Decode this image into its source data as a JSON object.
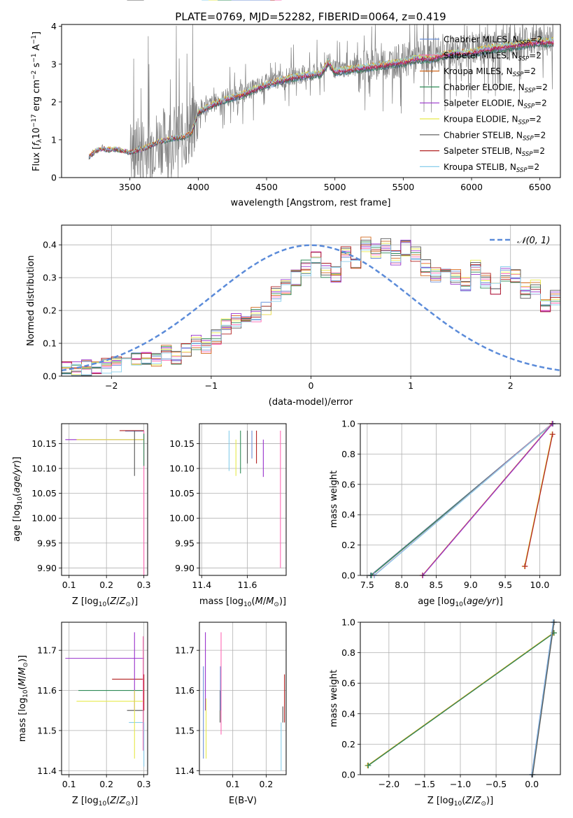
{
  "figure": {
    "title": "PLATE=0769, MJD=52282, FIBERID=0064, z=0.419"
  },
  "colors": {
    "chabrier_miles": "#6b8fd6",
    "salpeter_miles": "#ff69b4",
    "kroupa_miles": "#d2691e",
    "chabrier_elodie": "#2e8b57",
    "salpeter_elodie": "#9932cc",
    "kroupa_elodie": "#e6e94a",
    "chabrier_stelib": "#555555",
    "salpeter_stelib": "#b22222",
    "kroupa_stelib": "#87ceeb",
    "data": "#808080",
    "normal": "#5b8bd9"
  },
  "chart_data": [
    {
      "id": "spectrum",
      "type": "line",
      "title": "PLATE=0769, MJD=52282, FIBERID=0064, z=0.419",
      "xlabel": "wavelength [Angstrom, rest frame]",
      "ylabel": "Flux [f_λ 10^-17 erg cm^-2 s^-1 A^-1]",
      "xlim": [
        3000,
        6650
      ],
      "ylim": [
        0,
        4.05
      ],
      "xticks": [
        3500,
        4000,
        4500,
        5000,
        5500,
        6000,
        6500
      ],
      "yticks": [
        0,
        1,
        2,
        3,
        4
      ],
      "legend_position": "top-right",
      "series": [
        {
          "name": "Chabrier MILES, N_SSP=2"
        },
        {
          "name": "Salpeter MILES, N_SSP=2"
        },
        {
          "name": "Kroupa MILES, N_SSP=2"
        },
        {
          "name": "Chabrier ELODIE, N_SSP=2"
        },
        {
          "name": "Salpeter ELODIE, N_SSP=2"
        },
        {
          "name": "Kroupa ELODIE, N_SSP=2"
        },
        {
          "name": "Chabrier STELIB, N_SSP=2"
        },
        {
          "name": "Salpeter STELIB, N_SSP=2"
        },
        {
          "name": "Kroupa STELIB, N_SSP=2"
        }
      ],
      "model_continuum": {
        "x": [
          3200,
          3250,
          3300,
          3350,
          3400,
          3450,
          3500,
          3600,
          3700,
          3800,
          3900,
          3950,
          4000,
          4100,
          4200,
          4300,
          4400,
          4500,
          4600,
          4700,
          4800,
          4900,
          4950,
          5000,
          5100,
          5200,
          5300,
          5400,
          5500,
          5600,
          5700,
          5800,
          5900,
          6000,
          6100,
          6200,
          6300,
          6400,
          6500,
          6600
        ],
        "y": [
          0.55,
          0.72,
          0.78,
          0.75,
          0.76,
          0.72,
          0.68,
          0.78,
          0.95,
          1.05,
          1.1,
          1.2,
          1.75,
          1.95,
          2.1,
          2.2,
          2.35,
          2.5,
          2.6,
          2.7,
          2.75,
          2.8,
          3.1,
          2.85,
          2.9,
          2.95,
          3.0,
          3.05,
          3.1,
          3.2,
          3.2,
          3.3,
          3.35,
          3.35,
          3.45,
          3.5,
          3.55,
          3.6,
          3.65,
          3.65
        ]
      }
    },
    {
      "id": "residuals",
      "type": "line",
      "xlabel": "(data-model)/error",
      "ylabel": "Normed distribution",
      "xlim": [
        -2.5,
        2.5
      ],
      "ylim": [
        0,
        0.46
      ],
      "xticks": [
        -2,
        -1,
        0,
        1,
        2
      ],
      "yticks": [
        0.0,
        0.1,
        0.2,
        0.3,
        0.4
      ],
      "legend_position": "top-right",
      "legend": "𝒩(0, 1)",
      "histogram_base": {
        "bin_width": 0.1,
        "x_start": -2.5,
        "values": [
          0.02,
          0.02,
          0.025,
          0.03,
          0.03,
          0.035,
          0.04,
          0.05,
          0.06,
          0.05,
          0.07,
          0.06,
          0.08,
          0.1,
          0.09,
          0.12,
          0.15,
          0.17,
          0.16,
          0.19,
          0.21,
          0.25,
          0.27,
          0.3,
          0.33,
          0.36,
          0.32,
          0.31,
          0.37,
          0.34,
          0.4,
          0.38,
          0.4,
          0.36,
          0.39,
          0.37,
          0.33,
          0.31,
          0.32,
          0.3,
          0.28,
          0.33,
          0.29,
          0.27,
          0.31,
          0.3,
          0.26,
          0.27,
          0.22,
          0.24
        ]
      }
    },
    {
      "id": "age-vs-z",
      "type": "scatter",
      "xlabel": "Z [log10(Z/Z⊙)]",
      "ylabel": "age [log10(age/yr)]",
      "xlim": [
        0.08,
        0.31
      ],
      "ylim": [
        9.885,
        10.19
      ],
      "xticks": [
        0.1,
        0.2,
        0.3
      ],
      "yticks": [
        9.9,
        9.95,
        10.0,
        10.05,
        10.1,
        10.15
      ]
    },
    {
      "id": "age-vs-mass",
      "type": "scatter",
      "xlabel": "mass [log10(M/M⊙)]",
      "xlim": [
        11.39,
        11.77
      ],
      "ylim": [
        9.885,
        10.19
      ],
      "xticks": [
        11.4,
        11.6
      ],
      "yticks": [
        9.9,
        9.95,
        10.0,
        10.05,
        10.1,
        10.15
      ]
    },
    {
      "id": "weight-vs-age",
      "type": "line",
      "xlabel": "age [log10(age/yr)]",
      "ylabel": "mass weight",
      "xlim": [
        7.4,
        10.3
      ],
      "ylim": [
        0,
        1
      ],
      "xticks": [
        7.5,
        8.0,
        8.5,
        9.0,
        9.5,
        10.0
      ],
      "yticks": [
        0.0,
        0.2,
        0.4,
        0.6,
        0.8,
        1.0
      ],
      "lines": [
        {
          "x": [
            7.55,
            10.18
          ],
          "y": [
            0.0,
            1.0
          ]
        },
        {
          "x": [
            7.6,
            10.18
          ],
          "y": [
            0.0,
            1.0
          ]
        },
        {
          "x": [
            8.3,
            10.18
          ],
          "y": [
            0.0,
            1.0
          ]
        },
        {
          "x": [
            9.78,
            10.18
          ],
          "y": [
            0.06,
            0.93
          ]
        }
      ]
    },
    {
      "id": "mass-vs-z",
      "type": "scatter",
      "xlabel": "Z [log10(Z/Z⊙)]",
      "ylabel": "mass [log10(M/M⊙)]",
      "xlim": [
        0.08,
        0.31
      ],
      "ylim": [
        11.39,
        11.77
      ],
      "xticks": [
        0.1,
        0.2,
        0.3
      ],
      "yticks": [
        11.4,
        11.5,
        11.6,
        11.7
      ]
    },
    {
      "id": "mass-vs-ebv",
      "type": "scatter",
      "xlabel": "E(B-V)",
      "xlim": [
        0.0,
        0.26
      ],
      "ylim": [
        11.39,
        11.77
      ],
      "xticks": [
        0.1,
        0.2
      ],
      "yticks": [
        11.4,
        11.5,
        11.6,
        11.7
      ]
    },
    {
      "id": "weight-vs-z",
      "type": "line",
      "xlabel": "Z [log10(Z/Z⊙)]",
      "ylabel": "mass weight",
      "xlim": [
        -2.4,
        0.4
      ],
      "ylim": [
        0,
        1
      ],
      "xticks": [
        -2.0,
        -1.5,
        -1.0,
        -0.5,
        0.0
      ],
      "yticks": [
        0.0,
        0.2,
        0.4,
        0.6,
        0.8,
        1.0
      ],
      "lines": [
        {
          "x": [
            -2.3,
            0.3
          ],
          "y": [
            0.06,
            0.93
          ]
        },
        {
          "x": [
            0.0,
            0.3
          ],
          "y": [
            0.0,
            1.0
          ]
        }
      ]
    }
  ]
}
